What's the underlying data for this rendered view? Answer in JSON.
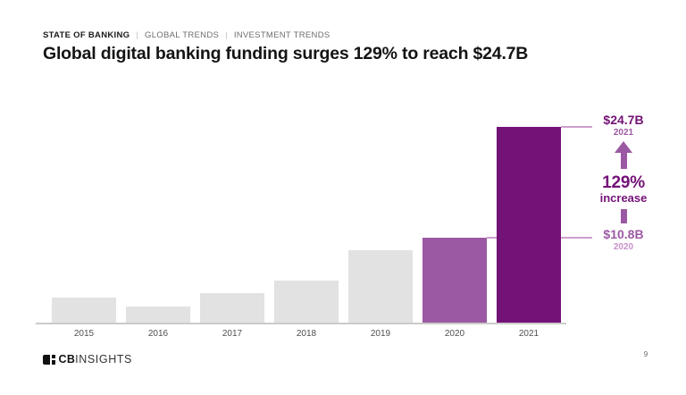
{
  "breadcrumb": {
    "items": [
      "STATE OF BANKING",
      "GLOBAL TRENDS",
      "INVESTMENT TRENDS"
    ],
    "separator": "|"
  },
  "title": "Global digital banking funding surges 129% to reach $24.7B",
  "chart_data": {
    "type": "bar",
    "categories": [
      "2015",
      "2016",
      "2017",
      "2018",
      "2019",
      "2020",
      "2021"
    ],
    "values": [
      3.3,
      2.1,
      3.8,
      5.4,
      9.2,
      10.8,
      24.7
    ],
    "unit": "USD billions",
    "ylim": [
      0,
      24.7
    ],
    "grid": false,
    "legend": "none",
    "default_bar_color": "#e2e2e2",
    "highlighted": {
      "2020": "#9c59a3",
      "2021": "#731277"
    },
    "annotations": {
      "value_2021": "$24.7B",
      "year_2021": "2021",
      "pct_change": "129%",
      "pct_change_label": "increase",
      "value_2020": "$10.8B",
      "year_2020": "2020"
    }
  },
  "colors": {
    "accent_dark": "#731277",
    "accent_mid": "#9c59a3",
    "accent_light": "#c690ca",
    "connector_line": "#cc9fce",
    "axis_line": "#cbcbcb"
  },
  "footer": {
    "logo_bold": "CB",
    "logo_light": "INSIGHTS",
    "page_number": "9"
  }
}
